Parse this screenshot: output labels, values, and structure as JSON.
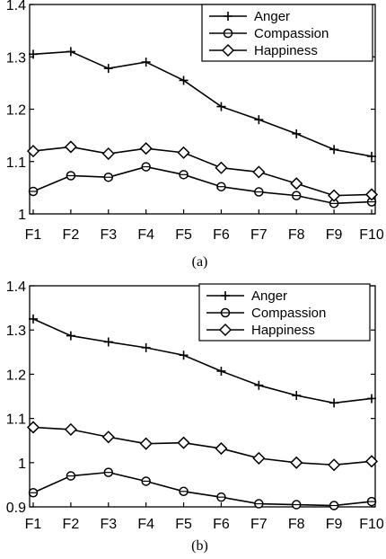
{
  "chart_data": [
    {
      "type": "line",
      "caption": "(a)",
      "categories": [
        "F1",
        "F2",
        "F3",
        "F4",
        "F5",
        "F6",
        "F7",
        "F8",
        "F9",
        "F10"
      ],
      "ylim": [
        1,
        1.4
      ],
      "yticks": [
        "1",
        "1.1",
        "1.2",
        "1.3",
        "1.4"
      ],
      "grid": false,
      "legend_position": "top-right",
      "series": [
        {
          "name": "Anger",
          "marker": "plus",
          "values": [
            1.305,
            1.31,
            1.278,
            1.29,
            1.255,
            1.205,
            1.18,
            1.153,
            1.123,
            1.11
          ]
        },
        {
          "name": "Compassion",
          "marker": "circle",
          "values": [
            1.043,
            1.073,
            1.07,
            1.09,
            1.075,
            1.052,
            1.042,
            1.035,
            1.02,
            1.023
          ]
        },
        {
          "name": "Happiness",
          "marker": "diamond",
          "values": [
            1.12,
            1.128,
            1.115,
            1.125,
            1.117,
            1.088,
            1.08,
            1.058,
            1.035,
            1.037
          ]
        }
      ]
    },
    {
      "type": "line",
      "caption": "(b)",
      "categories": [
        "F1",
        "F2",
        "F3",
        "F4",
        "F5",
        "F6",
        "F7",
        "F8",
        "F9",
        "F10"
      ],
      "ylim": [
        0.9,
        1.4
      ],
      "yticks": [
        "0.9",
        "1",
        "1.1",
        "1.2",
        "1.3",
        "1.4"
      ],
      "grid": false,
      "legend_position": "top-right",
      "series": [
        {
          "name": "Anger",
          "marker": "plus",
          "values": [
            1.325,
            1.287,
            1.273,
            1.26,
            1.243,
            1.207,
            1.175,
            1.152,
            1.135,
            1.145
          ]
        },
        {
          "name": "Compassion",
          "marker": "circle",
          "values": [
            0.932,
            0.97,
            0.978,
            0.958,
            0.935,
            0.922,
            0.907,
            0.905,
            0.903,
            0.912
          ]
        },
        {
          "name": "Happiness",
          "marker": "diamond",
          "values": [
            1.08,
            1.075,
            1.058,
            1.043,
            1.045,
            1.032,
            1.01,
            1.0,
            0.995,
            1.003
          ]
        }
      ]
    }
  ]
}
